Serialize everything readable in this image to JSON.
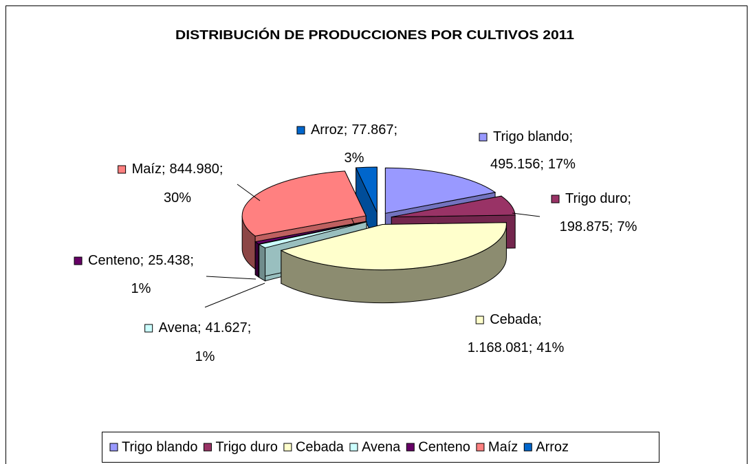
{
  "chart_data": {
    "type": "pie3d",
    "title": "DISTRIBUCIÓN DE PRODUCCIONES POR CULTIVOS 2011",
    "categories": [
      "Trigo blando",
      "Trigo duro",
      "Cebada",
      "Avena",
      "Centeno",
      "Maíz",
      "Arroz"
    ],
    "values": [
      495156,
      198875,
      1168081,
      41627,
      25438,
      844980,
      77867
    ],
    "value_labels": [
      "495.156",
      "198.875",
      "1.168.081",
      "41.627",
      "25.438",
      "844.980",
      "77.867"
    ],
    "percent_labels": [
      "17%",
      "7%",
      "41%",
      "1%",
      "1%",
      "30%",
      "3%"
    ],
    "label_separator": ";",
    "colors": [
      "#9999ff",
      "#993366",
      "#ffffcc",
      "#ccffff",
      "#660066",
      "#ff8080",
      "#0066cc"
    ],
    "legend": "bottom"
  }
}
